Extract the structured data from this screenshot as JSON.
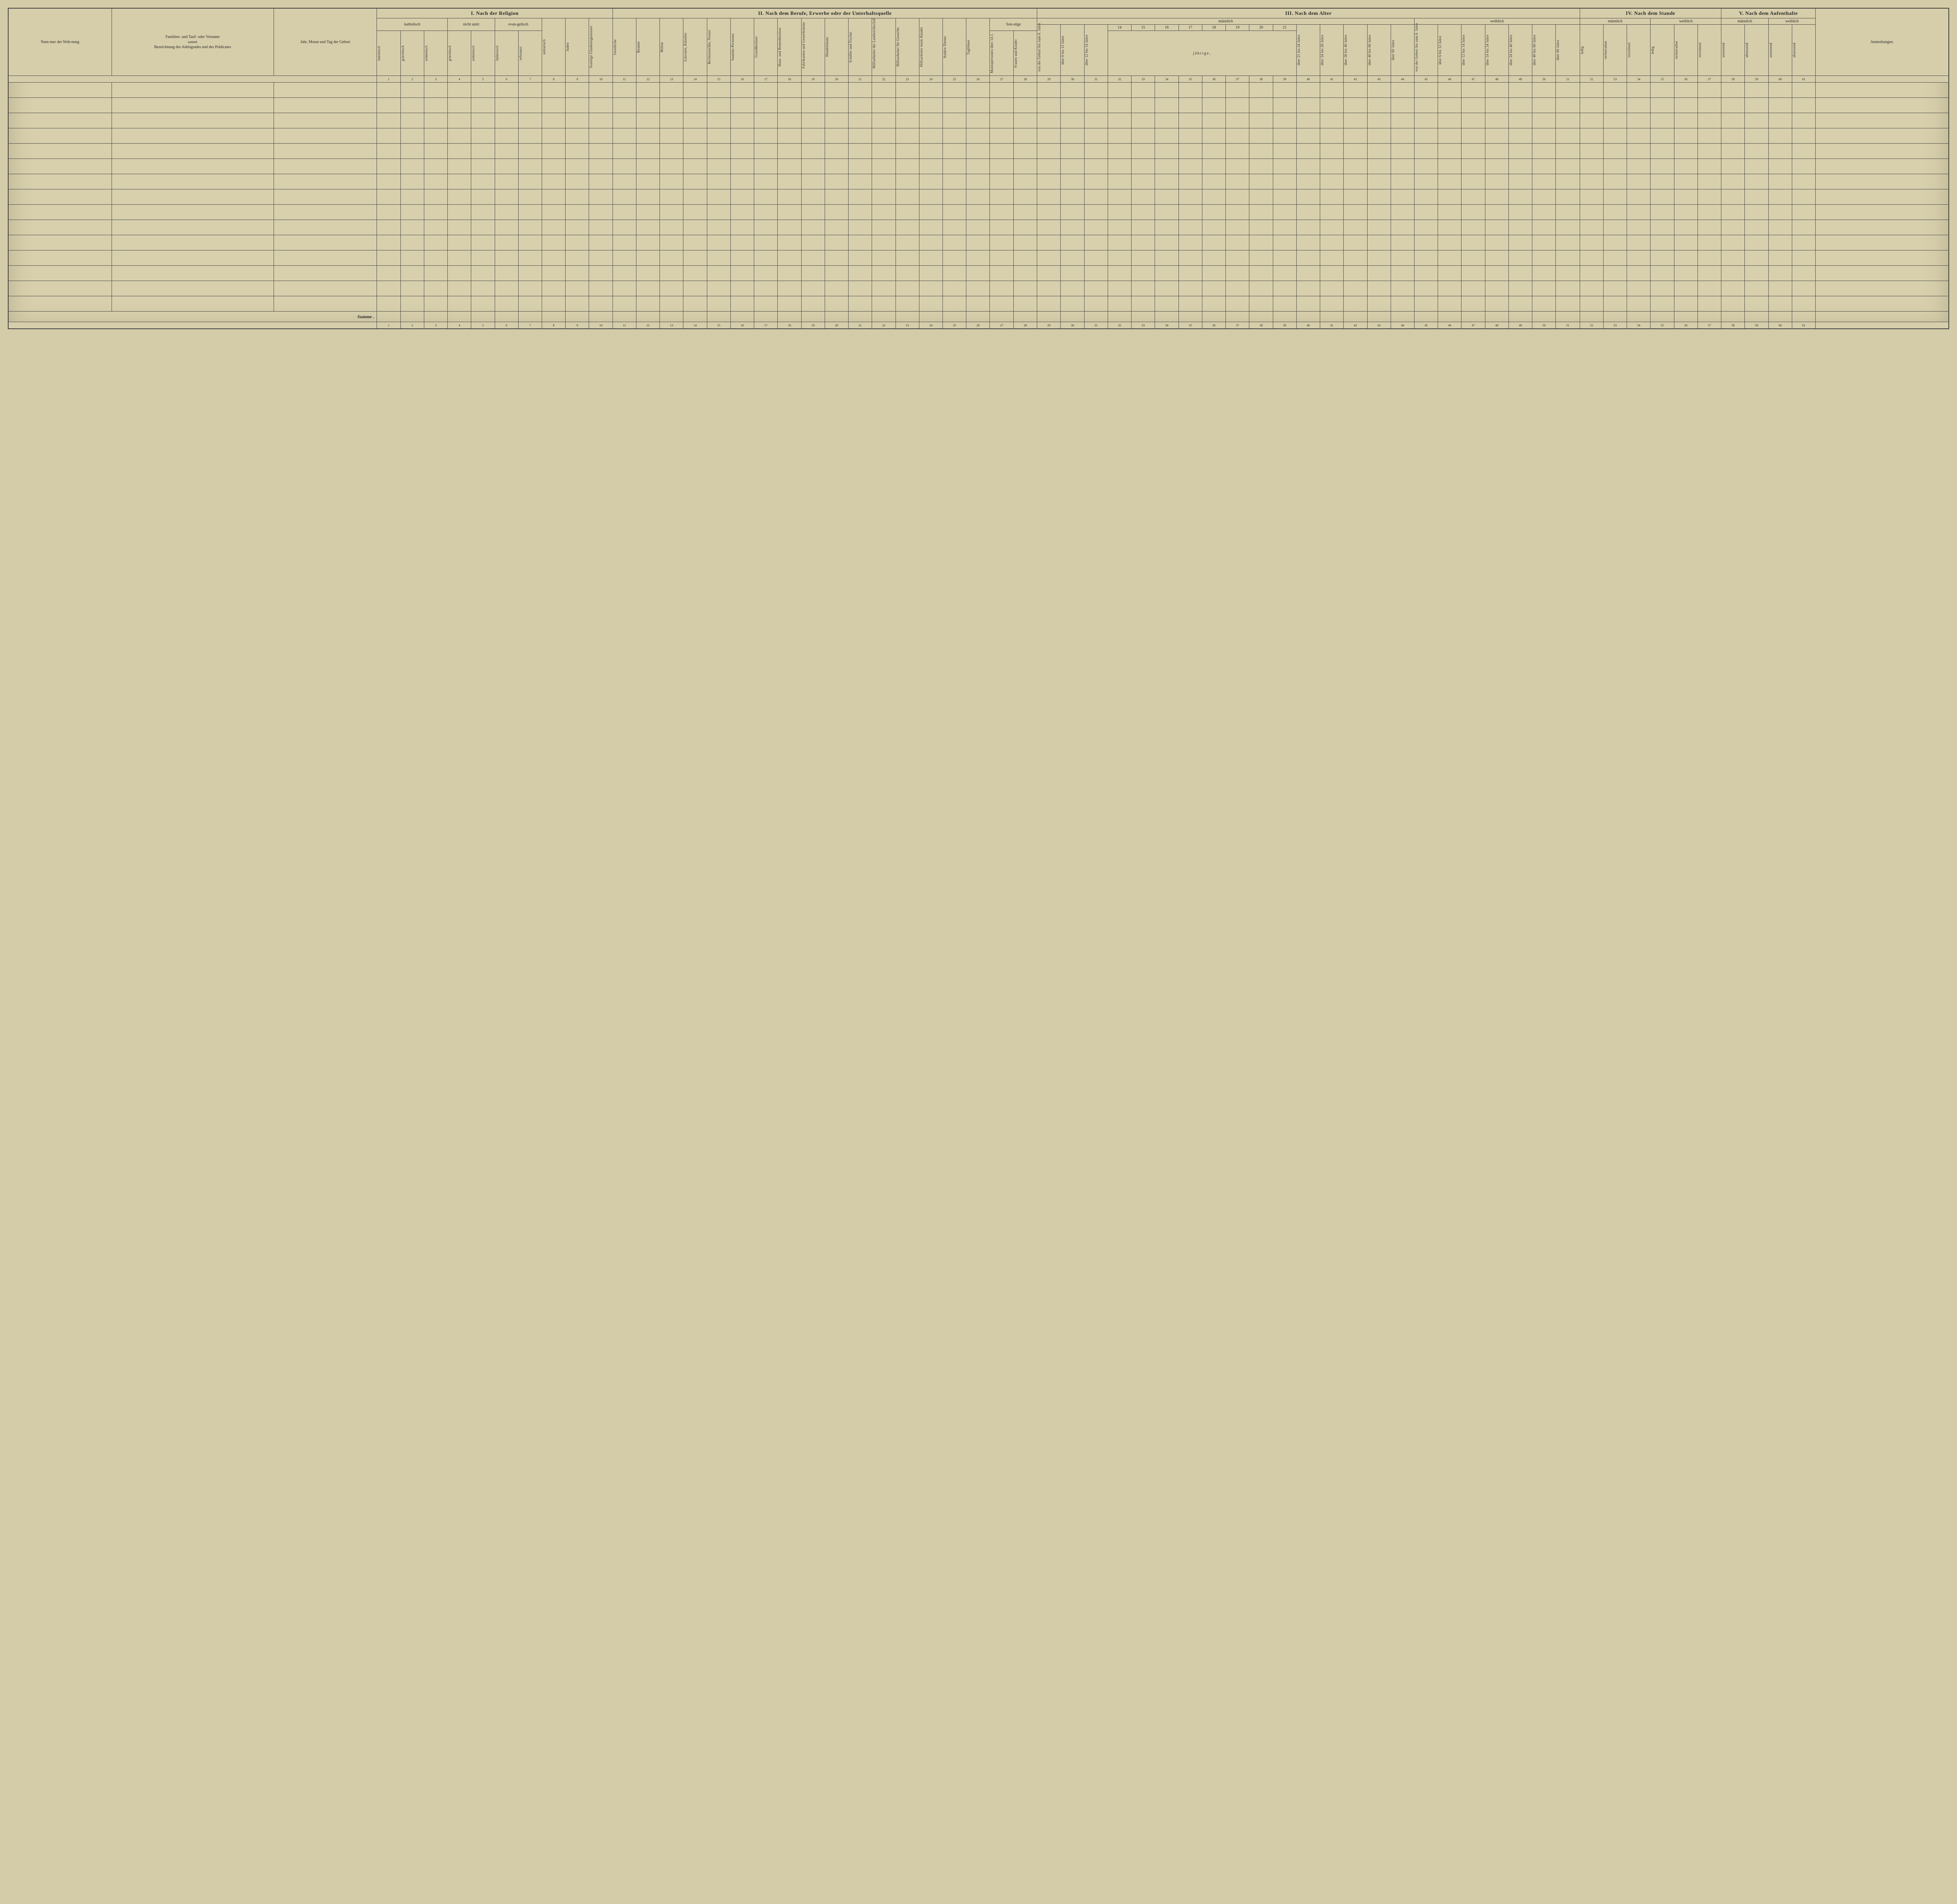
{
  "sections": {
    "I": "I. Nach der Religion",
    "II": "II. Nach dem Berufe, Erwerbe oder der Unterhaltsquelle",
    "III": "III. Nach dem Alter",
    "IV": "IV. Nach dem Stande",
    "V": "V. Nach dem Aufenthalte"
  },
  "left": {
    "nummer": "Num-mer der Woh-nung",
    "familien": "Familien- und Tauf- oder Vorname",
    "sammt": "sammt",
    "bezeichnung": "Bezeichnung des Adelsgrades und des Prädicates",
    "jahr": "Jahr, Monat und Tag der Geburt"
  },
  "religion": {
    "katholisch": "katholisch",
    "nicht_unirt": "nicht unirt",
    "evangelisch": "evan-gelisch",
    "cols": [
      "lateinisch",
      "griechisch",
      "armenisch",
      "griechisch",
      "armenisch",
      "lutherisch",
      "reformirt",
      "unitarisch",
      "Juden",
      "Sonstige Glaubensgenossen"
    ]
  },
  "beruf_cols": [
    "Geistliche",
    "Beamte",
    "Militär",
    "Literaten, Künstler",
    "Rechtsanwälte, Notare",
    "Sanitäts-Personen",
    "Grundbesitzer",
    "Haus- und Rentenbesitzer",
    "Fabrikanten und Gewerbsleute",
    "Handelsleute",
    "Schiffer und Fischer",
    "Hilfsarbeiter der Landwirthschaft",
    "Hilfsarbeiter für Gewerbe",
    "Hilfsarbeiter beim Handel",
    "Andere Diener",
    "Taglöhner"
  ],
  "sonstige": "Son-stige",
  "sonstige_cols": [
    "Mannspersonen über 14 J.",
    "Frauen und Kinder"
  ],
  "alter": {
    "mannlich": "männlich",
    "weiblich": "weiblich",
    "m_cols_a": [
      "von der Geburt bis zum 6. Jahre",
      "über 6 bis 12 Jahre",
      "über 12 bis 14 Jahre"
    ],
    "year_nums": [
      "14",
      "15",
      "16",
      "17",
      "18",
      "19",
      "20",
      "21"
    ],
    "jahrige": "jährige,",
    "m_cols_b": [
      "über 21 bis 24 Jahre",
      "über 24 bis 26 Jahre",
      "über 26 bis 40 Jahre",
      "über 40 bis 60 Jahre",
      "über 60 Jahre"
    ],
    "w_cols": [
      "von der Geburt bis zum 6. Jahre",
      "über 6 bis 12 Jahre",
      "über 12 bis 14 Jahre",
      "über 14 bis 24 Jahre",
      "über 24 bis 40 Jahre",
      "über 40 bis 60 Jahre",
      "über 60 Jahre"
    ]
  },
  "stande": {
    "mannlich": "männlich",
    "weiblich": "weiblich",
    "cols": [
      "ledig",
      "verheirathet",
      "verwitwet"
    ]
  },
  "aufenthalt": {
    "mannlich": "männlich",
    "weiblich": "weiblich",
    "cols": [
      "anwesend",
      "abwesend"
    ]
  },
  "anmerkungen": "Anmerkungen.",
  "summe": "Summe .",
  "colnums": [
    "1",
    "2",
    "3",
    "4",
    "5",
    "6",
    "7",
    "8",
    "9",
    "10",
    "11",
    "12",
    "13",
    "14",
    "15",
    "16",
    "17",
    "18",
    "19",
    "20",
    "21",
    "22",
    "23",
    "24",
    "25",
    "26",
    "27",
    "28",
    "29",
    "30",
    "31",
    "32",
    "33",
    "34",
    "35",
    "36",
    "37",
    "38",
    "39",
    "40",
    "41",
    "42",
    "43",
    "44",
    "45",
    "46",
    "47",
    "48",
    "49",
    "50",
    "51",
    "52",
    "53",
    "54",
    "55",
    "56",
    "57",
    "58",
    "59",
    "60",
    "61"
  ],
  "blank_rows": 15,
  "colors": {
    "paper": "#d8d0ad",
    "ink": "#2a2a2a",
    "border": "#4a4a4a"
  }
}
